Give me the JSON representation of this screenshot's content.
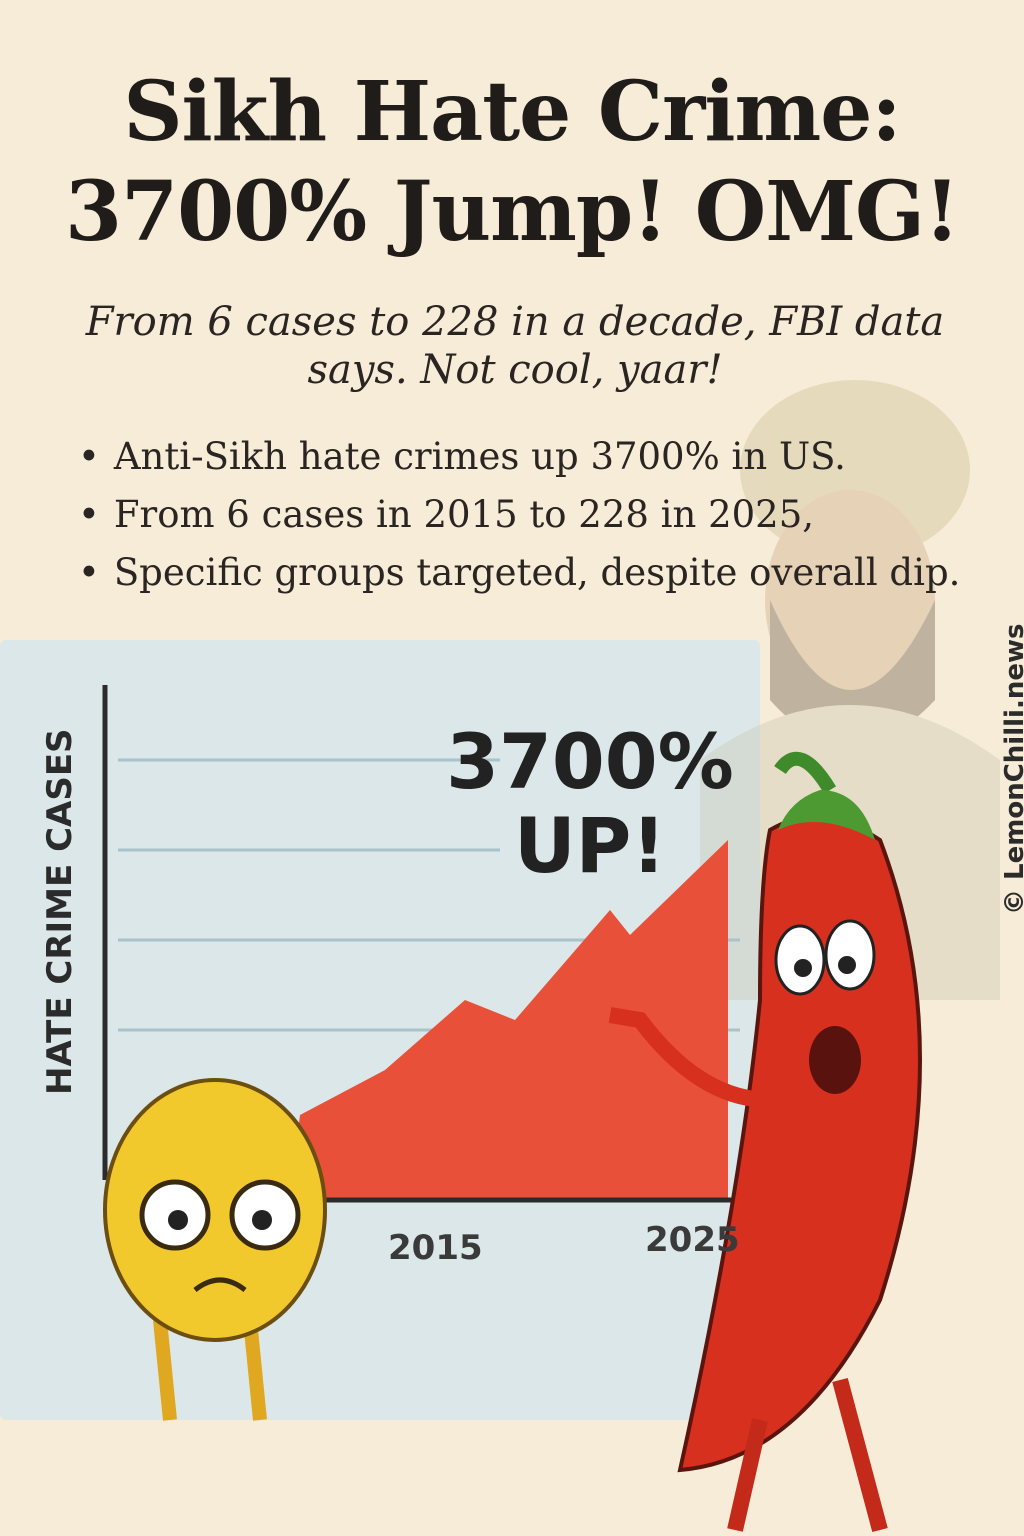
{
  "header": {
    "title_line1": "Sikh Hate Crime:",
    "title_line2": "3700% Jump! OMG!",
    "subtitle": "From 6 cases to 228 in a decade, FBI data says. Not cool, yaar!"
  },
  "bullets": [
    "Anti-Sikh hate crimes up 3700% in US.",
    "From 6 cases in 2015 to 228 in 2025,",
    "Specific groups targeted, despite overall dip."
  ],
  "illustration": {
    "y_axis_label": "HATE CRIME CASES",
    "x_ticks": [
      "2015",
      "2025"
    ],
    "callout_line1": "3700%",
    "callout_line2": "UP!",
    "characters": [
      "lemon-character",
      "chili-character",
      "sikh-man-background"
    ],
    "colors": {
      "background": "#f6ecd7",
      "panel": "#dbe7e8",
      "area": "#e8503a",
      "lemon": "#f2c92c",
      "chili": "#d7301f"
    }
  },
  "watermark": "© LemonChilli.news"
}
